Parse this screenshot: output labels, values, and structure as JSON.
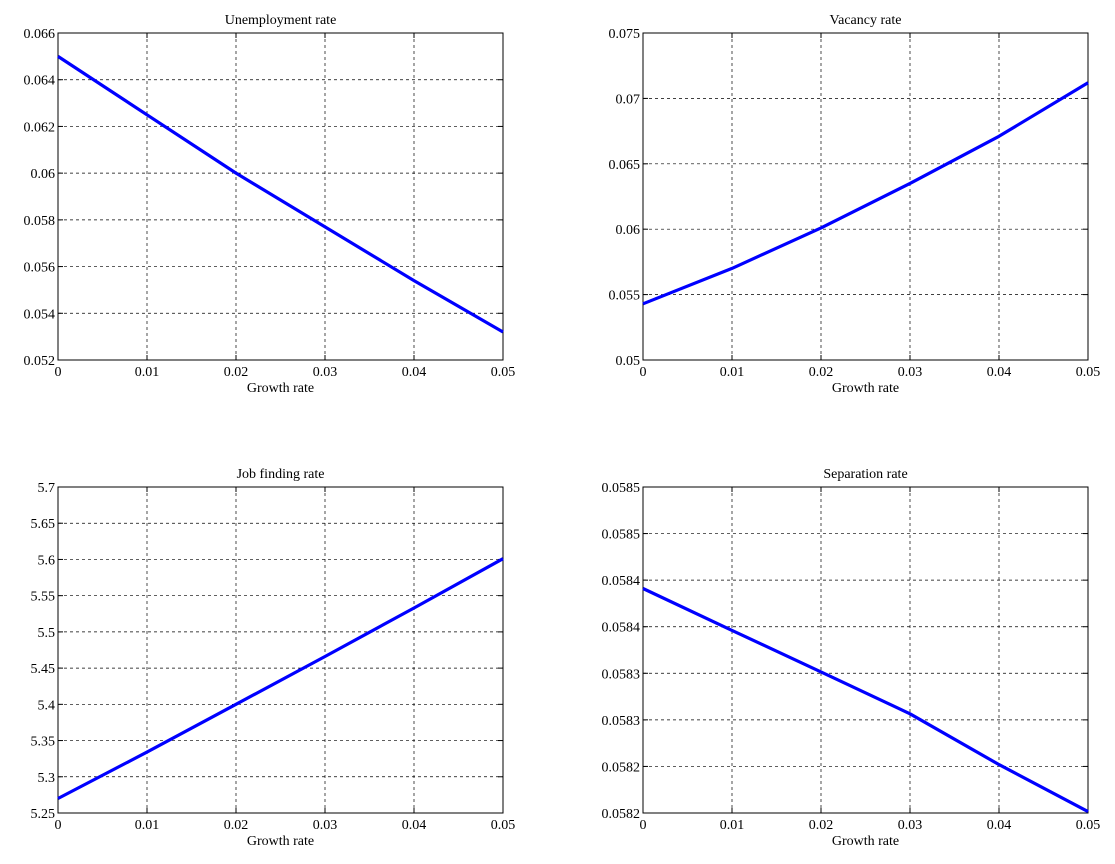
{
  "chart_data": [
    {
      "type": "line",
      "title": "Unemployment rate",
      "xlabel": "Growth rate",
      "ylabel": "",
      "xlim": [
        0,
        0.05
      ],
      "ylim": [
        0.052,
        0.066
      ],
      "xticks": [
        0,
        0.01,
        0.02,
        0.03,
        0.04,
        0.05
      ],
      "xtick_labels": [
        "0",
        "0.01",
        "0.02",
        "0.03",
        "0.04",
        "0.05"
      ],
      "yticks": [
        0.052,
        0.054,
        0.056,
        0.058,
        0.06,
        0.062,
        0.064,
        0.066
      ],
      "ytick_labels": [
        "0.052",
        "0.054",
        "0.056",
        "0.058",
        "0.06",
        "0.062",
        "0.064",
        "0.066"
      ],
      "grid": true,
      "series": [
        {
          "color": "#0000ff",
          "x": [
            0,
            0.01,
            0.02,
            0.03,
            0.04,
            0.05
          ],
          "y": [
            0.065,
            0.0625,
            0.06,
            0.0577,
            0.0554,
            0.0532
          ]
        }
      ]
    },
    {
      "type": "line",
      "title": "Vacancy rate",
      "xlabel": "Growth rate",
      "ylabel": "",
      "xlim": [
        0,
        0.05
      ],
      "ylim": [
        0.05,
        0.075
      ],
      "xticks": [
        0,
        0.01,
        0.02,
        0.03,
        0.04,
        0.05
      ],
      "xtick_labels": [
        "0",
        "0.01",
        "0.02",
        "0.03",
        "0.04",
        "0.05"
      ],
      "yticks": [
        0.05,
        0.055,
        0.06,
        0.065,
        0.07,
        0.075
      ],
      "ytick_labels": [
        "0.05",
        "0.055",
        "0.06",
        "0.065",
        "0.07",
        "0.075"
      ],
      "grid": true,
      "series": [
        {
          "color": "#0000ff",
          "x": [
            0,
            0.01,
            0.02,
            0.03,
            0.04,
            0.05
          ],
          "y": [
            0.0543,
            0.057,
            0.0601,
            0.0635,
            0.0671,
            0.0712
          ]
        }
      ]
    },
    {
      "type": "line",
      "title": "Job finding rate",
      "xlabel": "Growth rate",
      "ylabel": "",
      "xlim": [
        0,
        0.05
      ],
      "ylim": [
        5.25,
        5.7
      ],
      "xticks": [
        0,
        0.01,
        0.02,
        0.03,
        0.04,
        0.05
      ],
      "xtick_labels": [
        "0",
        "0.01",
        "0.02",
        "0.03",
        "0.04",
        "0.05"
      ],
      "yticks": [
        5.25,
        5.3,
        5.35,
        5.4,
        5.45,
        5.5,
        5.55,
        5.6,
        5.65,
        5.7
      ],
      "ytick_labels": [
        "5.25",
        "5.3",
        "5.35",
        "5.4",
        "5.45",
        "5.5",
        "5.55",
        "5.6",
        "5.65",
        "5.7"
      ],
      "grid": true,
      "series": [
        {
          "color": "#0000ff",
          "x": [
            0,
            0.01,
            0.02,
            0.03,
            0.04,
            0.05
          ],
          "y": [
            5.27,
            5.334,
            5.4,
            5.466,
            5.533,
            5.601
          ]
        }
      ]
    },
    {
      "type": "line",
      "title": "Separation rate",
      "xlabel": "Growth rate",
      "ylabel": "",
      "xlim": [
        0,
        0.05
      ],
      "ylim": [
        0,
        7
      ],
      "xticks": [
        0,
        0.01,
        0.02,
        0.03,
        0.04,
        0.05
      ],
      "xtick_labels": [
        "0",
        "0.01",
        "0.02",
        "0.03",
        "0.04",
        "0.05"
      ],
      "yticks": [
        0,
        1,
        2,
        3,
        4,
        5,
        6,
        7
      ],
      "ytick_labels": [
        "0.0582",
        "0.0582",
        "0.0583",
        "0.0583",
        "0.0584",
        "0.0584",
        "0.0585",
        "0.0585"
      ],
      "grid": true,
      "series": [
        {
          "color": "#0000ff",
          "x": [
            0,
            0.01,
            0.02,
            0.03,
            0.04,
            0.05
          ],
          "y": [
            4.82,
            3.92,
            3.03,
            2.13,
            1.04,
            0.03
          ]
        }
      ]
    }
  ]
}
